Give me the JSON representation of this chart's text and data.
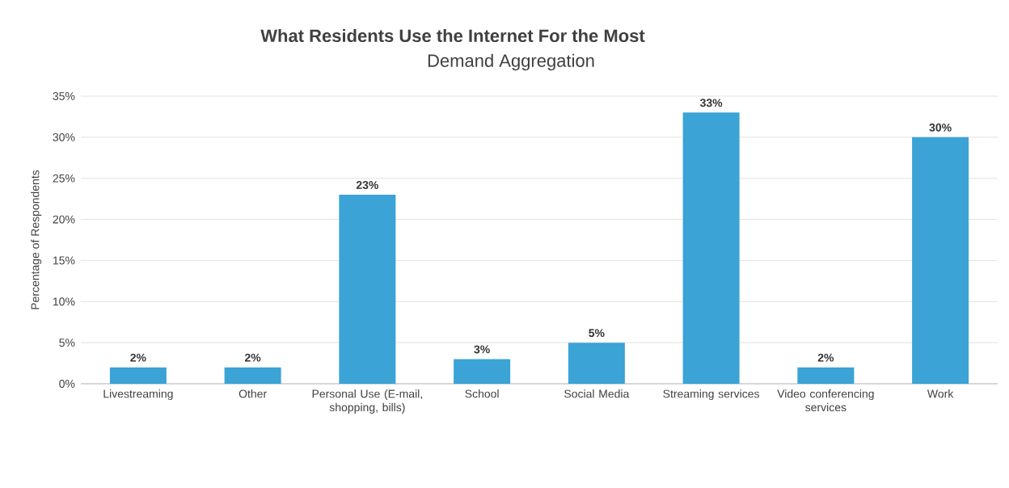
{
  "chart_data": {
    "type": "bar",
    "title": "What Residents Use the Internet For the Most",
    "subtitle": "Demand Aggregation",
    "ylabel": "Percentage of Respondents",
    "categories": [
      "Livestreaming",
      "Other",
      "Personal Use (E-mail, shopping, bills)",
      "School",
      "Social Media",
      "Streaming services",
      "Video conferencing services",
      "Work"
    ],
    "values": [
      2,
      2,
      23,
      3,
      5,
      33,
      2,
      30
    ],
    "value_labels": [
      "2%",
      "2%",
      "23%",
      "3%",
      "5%",
      "33%",
      "2%",
      "30%"
    ],
    "color": "#3ba3d5",
    "ylim": [
      0,
      35
    ],
    "yticks": [
      {
        "value": 0,
        "label": "0%"
      },
      {
        "value": 5,
        "label": "5%"
      },
      {
        "value": 10,
        "label": "10%"
      },
      {
        "value": 15,
        "label": "15%"
      },
      {
        "value": 20,
        "label": "20%"
      },
      {
        "value": 25,
        "label": "25%"
      },
      {
        "value": 30,
        "label": "30%"
      },
      {
        "value": 35,
        "label": "35%"
      }
    ],
    "grid": "y"
  }
}
